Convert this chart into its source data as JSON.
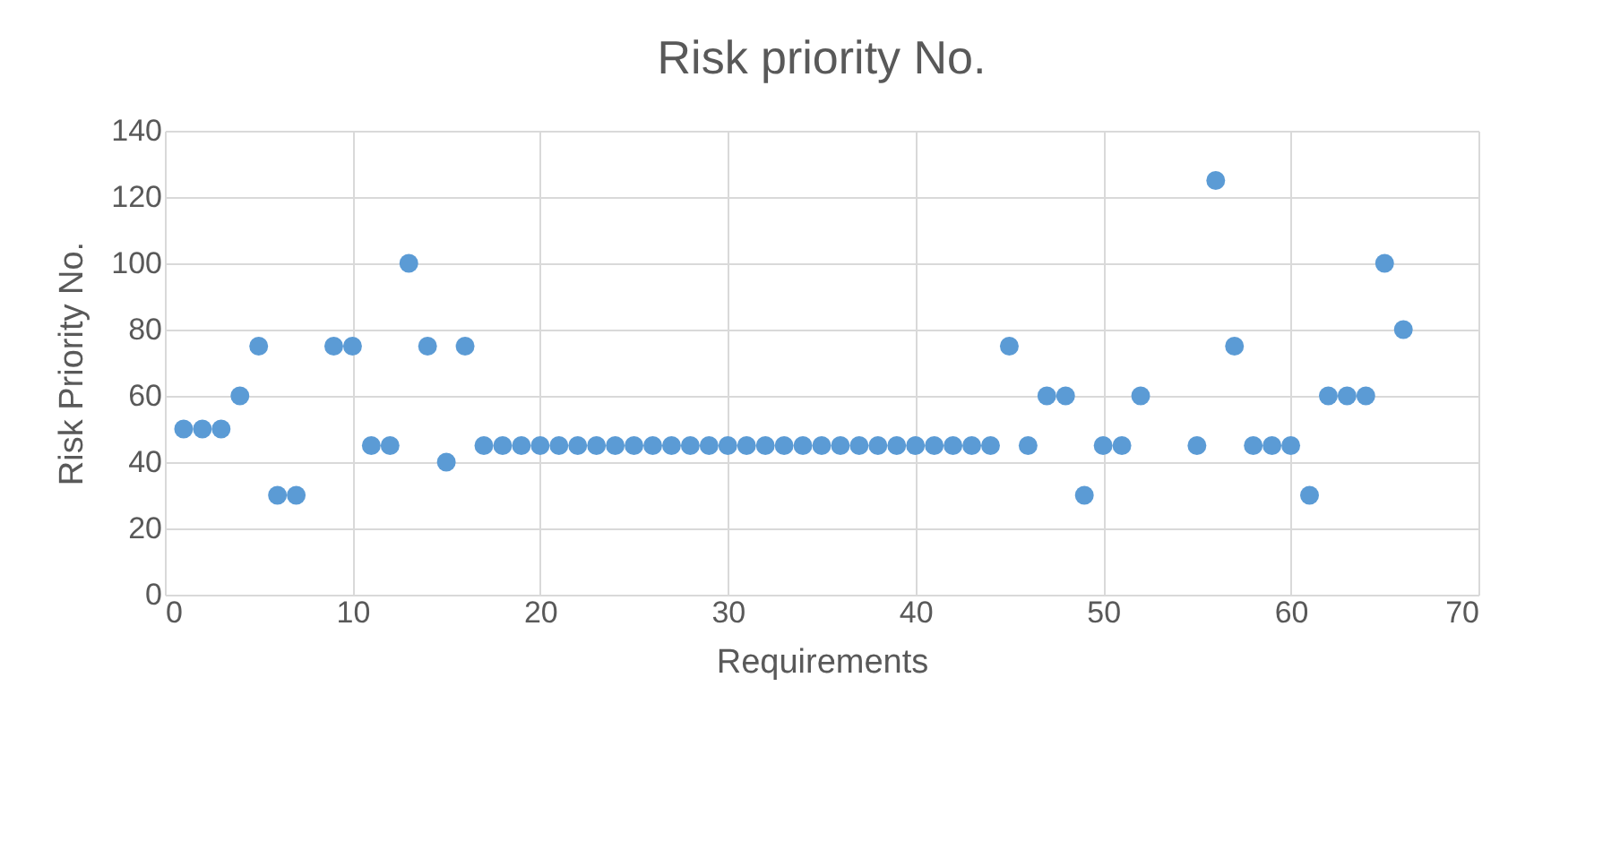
{
  "chart_data": {
    "type": "scatter",
    "title": "Risk priority No.",
    "xlabel": "Requirements",
    "ylabel": "Risk Priority No.",
    "x": [
      1,
      2,
      3,
      4,
      5,
      6,
      7,
      9,
      10,
      11,
      12,
      13,
      14,
      15,
      16,
      17,
      18,
      19,
      20,
      21,
      22,
      23,
      24,
      25,
      26,
      27,
      28,
      29,
      30,
      31,
      32,
      33,
      34,
      35,
      36,
      37,
      38,
      39,
      40,
      41,
      42,
      43,
      44,
      45,
      46,
      47,
      48,
      49,
      50,
      51,
      52,
      55,
      56,
      57,
      58,
      59,
      60,
      61,
      62,
      63,
      64,
      65,
      66
    ],
    "series": [
      {
        "color": "#5b9bd5",
        "values": [
          50,
          50,
          50,
          60,
          75,
          30,
          30,
          75,
          75,
          45,
          45,
          100,
          75,
          40,
          75,
          45,
          45,
          45,
          45,
          45,
          45,
          45,
          45,
          45,
          45,
          45,
          45,
          45,
          45,
          45,
          45,
          45,
          45,
          45,
          45,
          45,
          45,
          45,
          45,
          45,
          45,
          45,
          45,
          75,
          45,
          60,
          60,
          30,
          45,
          45,
          60,
          45,
          125,
          75,
          45,
          45,
          45,
          30,
          60,
          60,
          60,
          100,
          80
        ]
      }
    ],
    "xlim": [
      0,
      70
    ],
    "xticks": [
      0,
      10,
      20,
      30,
      40,
      50,
      60,
      70
    ],
    "ylim": [
      0,
      140
    ],
    "yticks": [
      0,
      20,
      40,
      60,
      80,
      100,
      120,
      140
    ],
    "grid": true,
    "marker": "circle"
  }
}
